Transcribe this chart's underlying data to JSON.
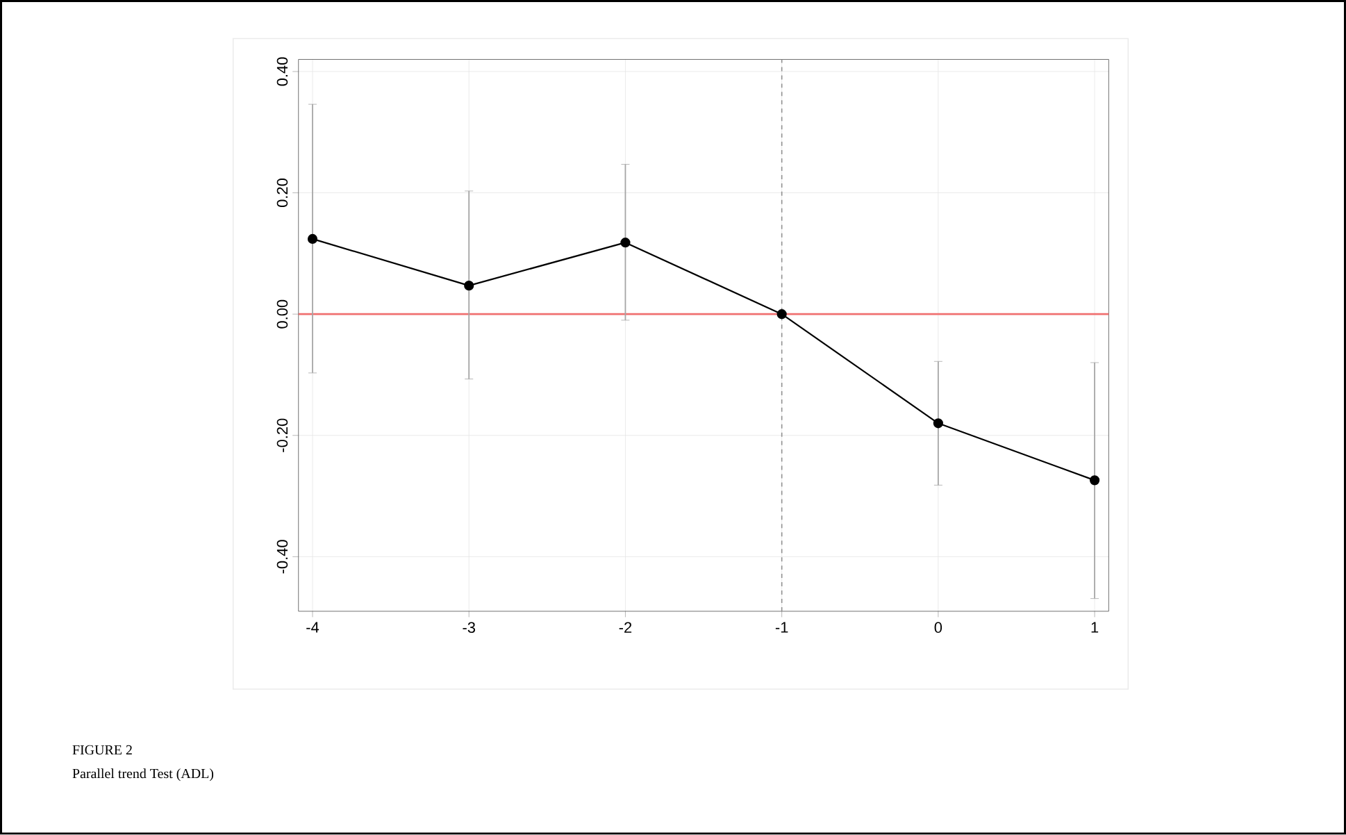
{
  "chart_data": {
    "type": "line",
    "x": [
      -4,
      -3,
      -2,
      -1,
      0,
      1
    ],
    "series": [
      {
        "color": "#000000",
        "values": [
          0.124,
          0.047,
          0.118,
          0.0,
          -0.18,
          -0.274
        ],
        "errors": [
          [
            -0.097,
            0.346
          ],
          [
            -0.107,
            0.203
          ],
          [
            -0.01,
            0.247
          ],
          null,
          [
            -0.282,
            -0.078
          ],
          [
            -0.469,
            -0.08
          ]
        ]
      }
    ],
    "xlim": [
      -4.09,
      1.09
    ],
    "ylim": [
      -0.49,
      0.42
    ],
    "xticks": [
      -4,
      -3,
      -2,
      -1,
      0,
      1
    ],
    "yticks": [
      {
        "value": -0.4,
        "label": "-0.40"
      },
      {
        "value": -0.2,
        "label": "-0.20"
      },
      {
        "value": 0,
        "label": "0.00"
      },
      {
        "value": 0.2,
        "label": "0.20"
      },
      {
        "value": 0.4,
        "label": "0.40"
      }
    ],
    "ref_lines": [
      {
        "axis": "y",
        "value": 0,
        "color": "#f07070",
        "line_style": "solid"
      },
      {
        "axis": "x",
        "value": -1,
        "color": "#909090",
        "line_style": "dashed"
      }
    ],
    "grid": true,
    "marker": "circle",
    "line_style": "solid",
    "annotations": [
      "FIGURE 2",
      "Parallel trend Test (ADL)"
    ]
  }
}
